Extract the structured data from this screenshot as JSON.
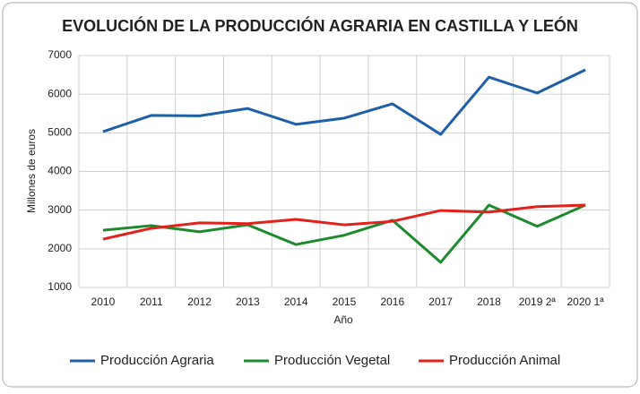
{
  "chart_data": {
    "type": "line",
    "title": "EVOLUCIÓN DE LA PRODUCCIÓN AGRARIA EN CASTILLA Y LEÓN",
    "x_label": "Año",
    "y_label": "Millones de euros",
    "categories": [
      "2010",
      "2011",
      "2012",
      "2013",
      "2014",
      "2015",
      "2016",
      "2017",
      "2018",
      "2019 2ª",
      "2020 1ª"
    ],
    "series": [
      {
        "name": "Producción Agraria",
        "color": "#1f5fa8",
        "values": [
          5030,
          5450,
          5440,
          5630,
          5220,
          5380,
          5750,
          4960,
          6440,
          6030,
          6630
        ]
      },
      {
        "name": "Producción Vegetal",
        "color": "#1e8a2e",
        "values": [
          2480,
          2600,
          2440,
          2620,
          2110,
          2350,
          2740,
          1650,
          3130,
          2580,
          3130
        ]
      },
      {
        "name": "Producción Animal",
        "color": "#e3211c",
        "values": [
          2250,
          2530,
          2670,
          2650,
          2760,
          2620,
          2710,
          2990,
          2950,
          3090,
          3130
        ]
      }
    ],
    "ylim": [
      1000,
      7000
    ],
    "yticks": [
      1000,
      2000,
      3000,
      4000,
      5000,
      6000,
      7000
    ],
    "grid": true,
    "legend": "bottom"
  }
}
